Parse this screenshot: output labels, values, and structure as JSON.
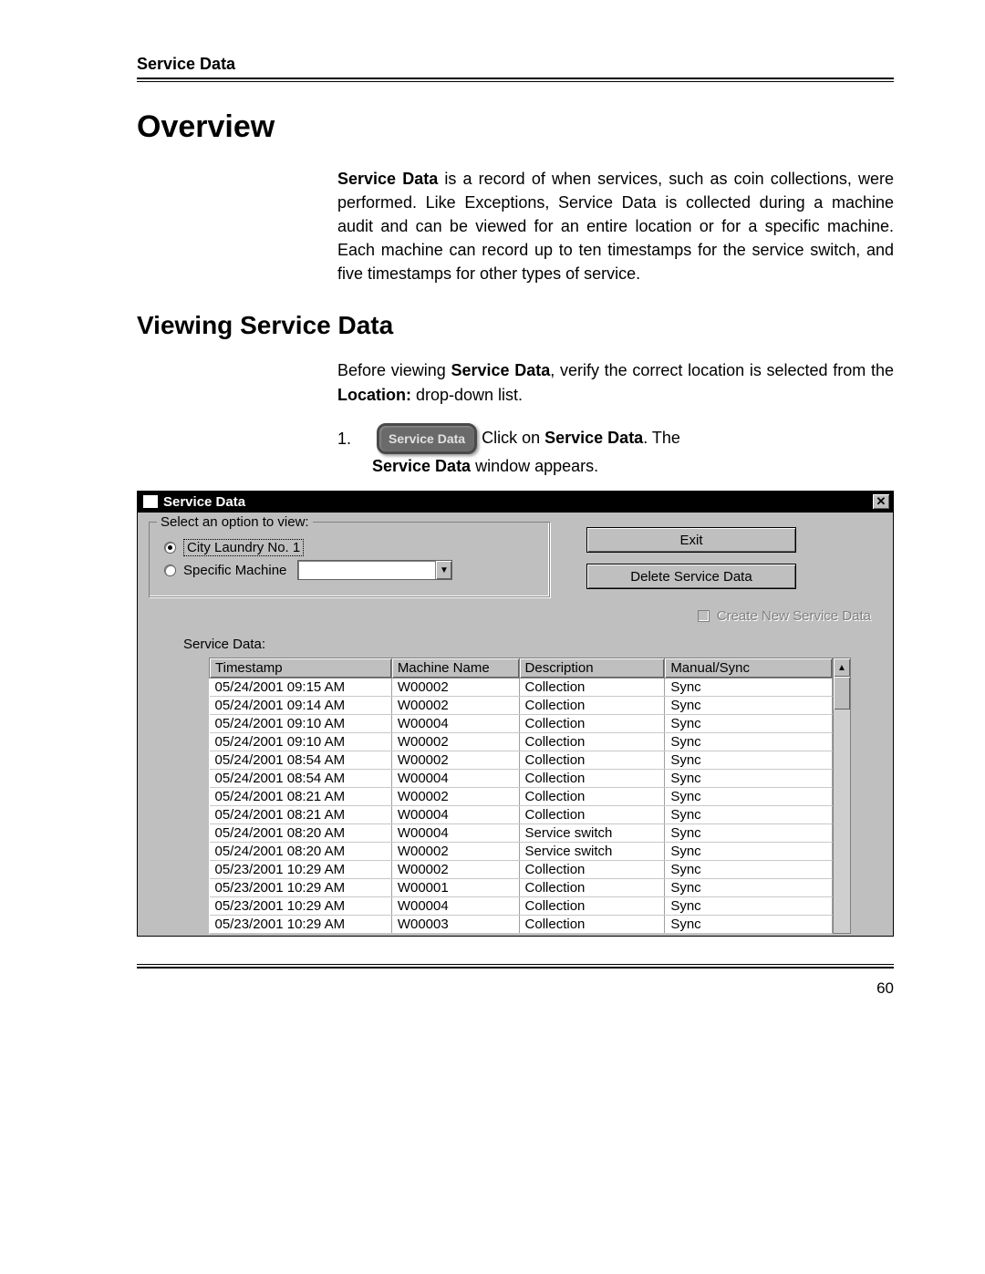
{
  "header": {
    "title": "Service Data"
  },
  "h1": "Overview",
  "overview_para": {
    "b1": "Service Data",
    "t1": " is a record of when services, such as coin collections, were performed. Like Exceptions, Service Data is collected during a machine audit and can be viewed for an entire location or for a specific machine. Each machine can record up to ten timestamps for the service switch, and five timestamps for other types of service."
  },
  "h2": "Viewing Service Data",
  "viewing_para": {
    "t1": "Before viewing ",
    "b1": "Service Data",
    "t2": ", verify the correct location is selected from the ",
    "b2": "Location:",
    "t3": " drop-down list."
  },
  "step": {
    "num": "1.",
    "badge": "Service Data",
    "after_badge": " Click on ",
    "b1": "Service Data",
    "t1": ". The",
    "line2_b": "Service Data",
    "line2_t": " window appears."
  },
  "window": {
    "title": "Service Data",
    "fieldset_legend": "Select an option to view:",
    "radio1_label": "City Laundry No. 1",
    "radio2_label": "Specific Machine",
    "btn_exit": "Exit",
    "btn_delete": "Delete Service Data",
    "check_label": "Create New Service Data",
    "sd_label": "Service Data:",
    "columns": [
      "Timestamp",
      "Machine Name",
      "Description",
      "Manual/Sync"
    ],
    "col_widths": [
      "200px",
      "140px",
      "160px",
      "184px"
    ],
    "rows": [
      [
        "05/24/2001 09:15 AM",
        "W00002",
        "Collection",
        "Sync"
      ],
      [
        "05/24/2001 09:14 AM",
        "W00002",
        "Collection",
        "Sync"
      ],
      [
        "05/24/2001 09:10 AM",
        "W00004",
        "Collection",
        "Sync"
      ],
      [
        "05/24/2001 09:10 AM",
        "W00002",
        "Collection",
        "Sync"
      ],
      [
        "05/24/2001 08:54 AM",
        "W00002",
        "Collection",
        "Sync"
      ],
      [
        "05/24/2001 08:54 AM",
        "W00004",
        "Collection",
        "Sync"
      ],
      [
        "05/24/2001 08:21 AM",
        "W00002",
        "Collection",
        "Sync"
      ],
      [
        "05/24/2001 08:21 AM",
        "W00004",
        "Collection",
        "Sync"
      ],
      [
        "05/24/2001 08:20 AM",
        "W00004",
        "Service switch",
        "Sync"
      ],
      [
        "05/24/2001 08:20 AM",
        "W00002",
        "Service switch",
        "Sync"
      ],
      [
        "05/23/2001 10:29 AM",
        "W00002",
        "Collection",
        "Sync"
      ],
      [
        "05/23/2001 10:29 AM",
        "W00001",
        "Collection",
        "Sync"
      ],
      [
        "05/23/2001 10:29 AM",
        "W00004",
        "Collection",
        "Sync"
      ],
      [
        "05/23/2001 10:29 AM",
        "W00003",
        "Collection",
        "Sync"
      ]
    ]
  },
  "page_num": "60"
}
